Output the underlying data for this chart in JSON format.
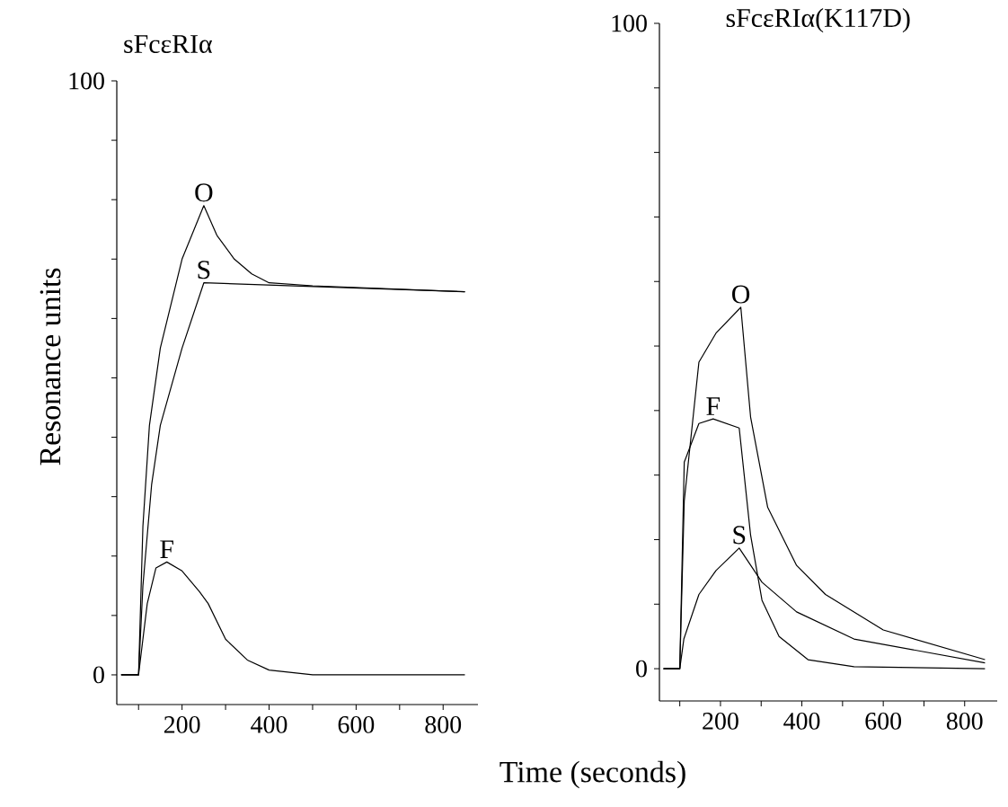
{
  "chart_data": [
    {
      "type": "line",
      "title": "sFcεRIα",
      "ylabel": "Resonance units",
      "xlim": [
        50,
        880
      ],
      "ylim": [
        -5,
        100
      ],
      "xticks": [
        {
          "value": 100,
          "label": null
        },
        200,
        {
          "value": 300,
          "label": null
        },
        400,
        {
          "value": 500,
          "label": null
        },
        600,
        {
          "value": 700,
          "label": null
        },
        800
      ],
      "yticks": [
        0,
        {
          "value": 10,
          "label": null
        },
        {
          "value": 20,
          "label": null
        },
        {
          "value": 30,
          "label": null
        },
        {
          "value": 40,
          "label": null
        },
        {
          "value": 50,
          "label": null
        },
        {
          "value": 60,
          "label": null
        },
        {
          "value": 70,
          "label": null
        },
        {
          "value": 80,
          "label": null
        },
        {
          "value": 90,
          "label": null
        },
        100
      ],
      "marker": "none",
      "line_style": "solid",
      "grid": false,
      "legend": false,
      "series": [
        {
          "name": "O",
          "color": "#000000",
          "x": [
            60,
            100,
            110,
            125,
            150,
            200,
            250,
            280,
            320,
            360,
            400,
            500,
            850
          ],
          "values": [
            0,
            0,
            25,
            42,
            55,
            70,
            79,
            74,
            70,
            67.5,
            66,
            65.5,
            64.5
          ]
        },
        {
          "name": "S",
          "color": "#000000",
          "x": [
            60,
            100,
            110,
            130,
            150,
            200,
            250,
            850
          ],
          "values": [
            0,
            0,
            15,
            32,
            42,
            55,
            66,
            64.5
          ]
        },
        {
          "name": "F",
          "color": "#000000",
          "x": [
            60,
            100,
            120,
            140,
            165,
            200,
            240,
            260,
            300,
            350,
            400,
            500,
            850
          ],
          "values": [
            0,
            0,
            12,
            18,
            19,
            17.5,
            14,
            12,
            6,
            2.5,
            0.8,
            0,
            0
          ]
        }
      ]
    },
    {
      "type": "line",
      "title": "sFcεRIα(K117D)",
      "xlabel": "Time (seconds)",
      "xlim": [
        50,
        880
      ],
      "ylim": [
        -5,
        100
      ],
      "xticks": [
        {
          "value": 100,
          "label": null
        },
        200,
        {
          "value": 300,
          "label": null
        },
        400,
        {
          "value": 500,
          "label": null
        },
        600,
        {
          "value": 700,
          "label": null
        },
        800
      ],
      "yticks": [
        0,
        {
          "value": 10,
          "label": null
        },
        {
          "value": 20,
          "label": null
        },
        {
          "value": 30,
          "label": null
        },
        {
          "value": 40,
          "label": null
        },
        {
          "value": 50,
          "label": null
        },
        {
          "value": 60,
          "label": null
        },
        {
          "value": 70,
          "label": null
        },
        {
          "value": 80,
          "label": null
        },
        {
          "value": 90,
          "label": null
        },
        100
      ],
      "marker": "none",
      "line_style": "solid",
      "grid": false,
      "legend": false,
      "series": [
        {
          "name": "O",
          "color": "#000000",
          "x": [
            60,
            100,
            111,
            147,
            189,
            250,
            274,
            316,
            387,
            458,
            600,
            850
          ],
          "values": [
            0,
            0,
            26,
            47.5,
            52,
            56,
            39,
            25,
            16,
            11.5,
            6,
            1.4
          ]
        },
        {
          "name": "F",
          "color": "#000000",
          "x": [
            60,
            100,
            111,
            147,
            182,
            246,
            274,
            302,
            344,
            415,
            528,
            850
          ],
          "values": [
            0,
            0,
            32,
            38,
            38.7,
            37.3,
            20.7,
            10.6,
            5,
            1.4,
            0.3,
            0
          ]
        },
        {
          "name": "S",
          "color": "#000000",
          "x": [
            60,
            100,
            110,
            147,
            189,
            246,
            302,
            387,
            528,
            850
          ],
          "values": [
            0,
            0,
            4.6,
            11.5,
            15.2,
            18.7,
            13.4,
            8.8,
            4.6,
            0.9
          ]
        }
      ]
    }
  ]
}
